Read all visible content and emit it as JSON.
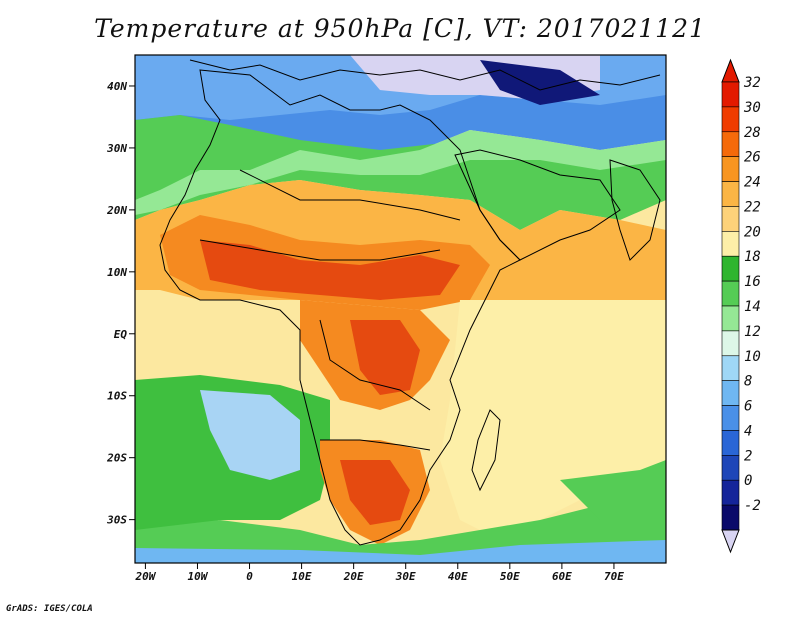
{
  "title": "Temperature at 950hPa [C], VT: 2017021121",
  "credit": "GrADS: IGES/COLA",
  "map": {
    "lat_ticks": [
      "40N",
      "30N",
      "20N",
      "10N",
      "EQ",
      "10S",
      "20S",
      "30S"
    ],
    "lat_values": [
      40,
      30,
      20,
      10,
      0,
      -10,
      -20,
      -30
    ],
    "lon_ticks": [
      "20W",
      "10W",
      "0",
      "10E",
      "20E",
      "30E",
      "40E",
      "50E",
      "60E",
      "70E"
    ],
    "lon_values": [
      -20,
      -10,
      0,
      10,
      20,
      30,
      40,
      50,
      60,
      70
    ],
    "lat_range": [
      -37,
      45
    ],
    "lon_range": [
      -22,
      80
    ]
  },
  "colorbar": {
    "labels": [
      "32",
      "30",
      "28",
      "26",
      "24",
      "22",
      "20",
      "18",
      "16",
      "14",
      "12",
      "10",
      "8",
      "6",
      "4",
      "2",
      "0",
      "-2"
    ],
    "colors": [
      "#e31a00",
      "#f03c00",
      "#f56a0a",
      "#f89520",
      "#fbb545",
      "#fdd27a",
      "#fdefa8",
      "#2fb52f",
      "#55cc55",
      "#95e895",
      "#ddf7e8",
      "#9fd7f6",
      "#6fb7f2",
      "#4a90e8",
      "#2a66d6",
      "#1e46b8",
      "#15259a",
      "#0a0a6a"
    ],
    "top_color": "#e31a00",
    "bottom_color": "#d8d4f2"
  },
  "colors": {
    "ocean_warm": "#fce8a0",
    "ocean_cool": "#fbd57f",
    "land_hot": "#e54a10",
    "land_warm": "#f58a20",
    "green": "#3fbf3f",
    "light_green": "#7ddc7d",
    "blue": "#4a8ee6",
    "light_blue": "#a8d4f4",
    "lavender": "#d8d4f2",
    "navy": "#101878"
  }
}
